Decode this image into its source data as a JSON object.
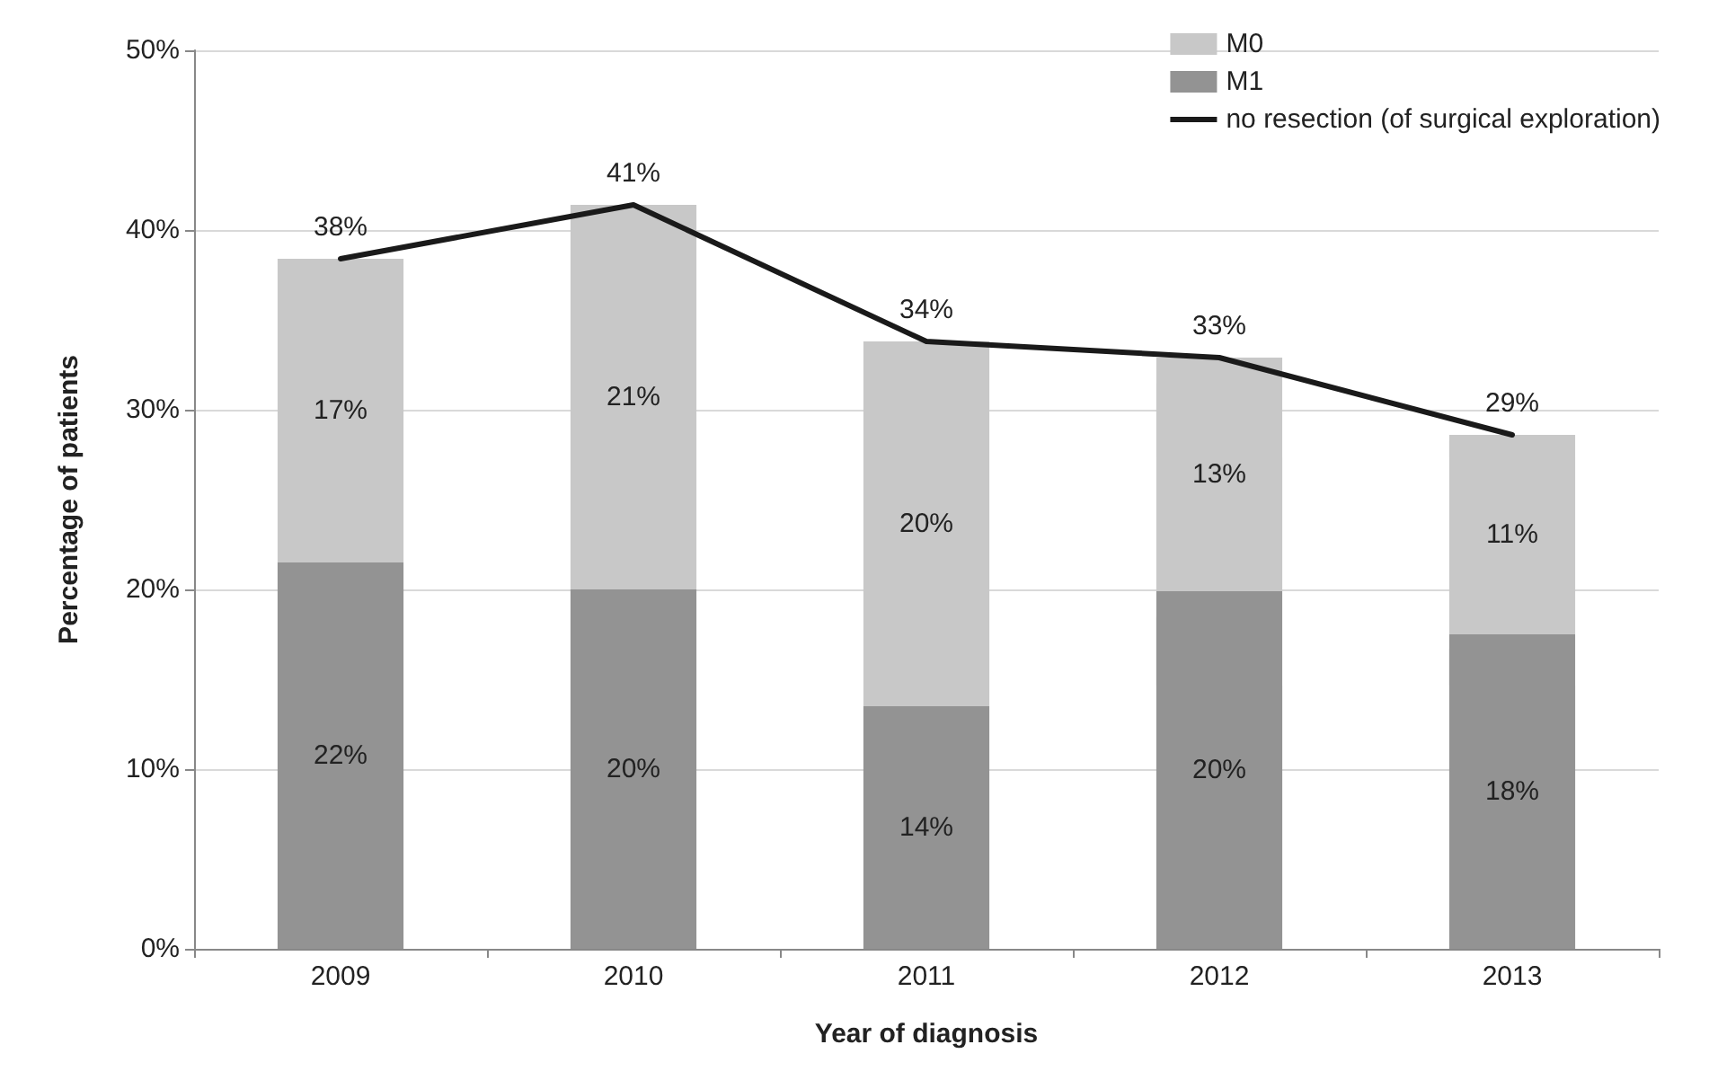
{
  "chart_data": {
    "type": "bar",
    "stacked": true,
    "xlabel": "Year of diagnosis",
    "ylabel": "Percentage of patients",
    "categories": [
      "2009",
      "2010",
      "2011",
      "2012",
      "2013"
    ],
    "series": [
      {
        "name": "M1",
        "color": "#939393",
        "values": [
          21.5,
          20.0,
          13.5,
          19.9,
          17.5
        ],
        "value_labels": [
          "22%",
          "20%",
          "14%",
          "20%",
          "18%"
        ]
      },
      {
        "name": "M0",
        "color": "#c8c8c8",
        "values": [
          16.9,
          21.4,
          20.3,
          13.0,
          11.1
        ],
        "value_labels": [
          "17%",
          "21%",
          "20%",
          "13%",
          "11%"
        ]
      },
      {
        "name": "no resection (of surgical exploration)",
        "type": "line",
        "color": "#1a1a1a",
        "values": [
          38.4,
          41.4,
          33.8,
          32.9,
          28.6
        ],
        "value_labels": [
          "38%",
          "41%",
          "34%",
          "33%",
          "29%"
        ]
      }
    ],
    "ylim": [
      0,
      50
    ],
    "yticks": [
      {
        "value": 0,
        "label": "0%"
      },
      {
        "value": 10,
        "label": "10%"
      },
      {
        "value": 20,
        "label": "20%"
      },
      {
        "value": 30,
        "label": "30%"
      },
      {
        "value": 40,
        "label": "40%"
      },
      {
        "value": 50,
        "label": "50%"
      }
    ],
    "grid": "y",
    "legend": "top right",
    "marker": "none",
    "line_style": "solid"
  }
}
